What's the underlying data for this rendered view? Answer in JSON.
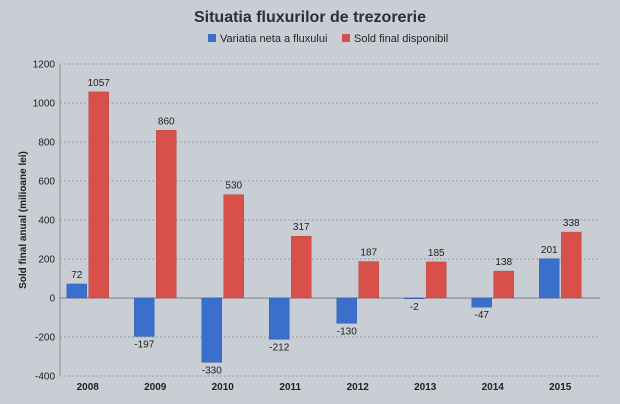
{
  "chart_data": {
    "type": "bar",
    "title": "Situatia fluxurilor de trezorerie",
    "xlabel": "",
    "ylabel": "Sold final anual (milioane lei)",
    "categories": [
      "2008",
      "2009",
      "2010",
      "2011",
      "2012",
      "2013",
      "2014",
      "2015"
    ],
    "series": [
      {
        "name": "Variatia neta a fluxului",
        "color": "#3a6fcc",
        "values": [
          72,
          -197,
          -330,
          -212,
          -130,
          -2,
          -47,
          201
        ]
      },
      {
        "name": "Sold final disponibil",
        "color": "#d9504a",
        "values": [
          1057,
          860,
          530,
          317,
          187,
          185,
          138,
          338
        ]
      }
    ],
    "ylim": [
      -400,
      1200
    ],
    "yticks": [
      -400,
      -200,
      0,
      200,
      400,
      600,
      800,
      1000,
      1200
    ],
    "grid": true,
    "legend_position": "top"
  }
}
